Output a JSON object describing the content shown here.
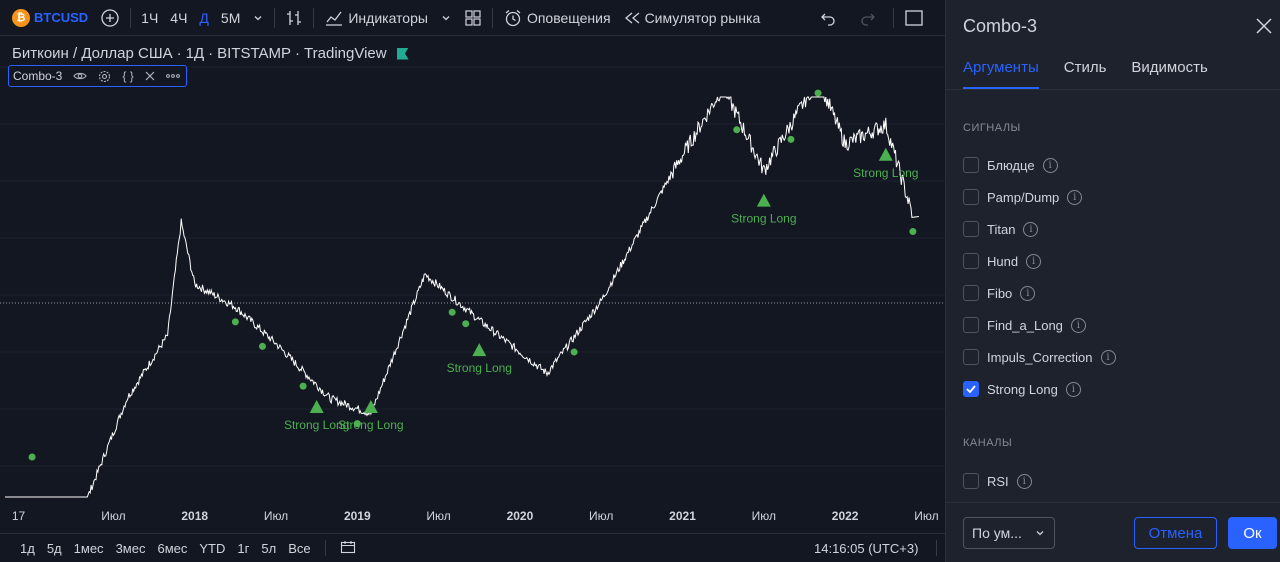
{
  "toolbar": {
    "symbol_logo": "₿",
    "symbol": "BTCUSD",
    "intervals": [
      "1Ч",
      "4Ч",
      "Д",
      "5М"
    ],
    "active_interval": "Д",
    "indicators_label": "Индикаторы",
    "alerts_label": "Оповещения",
    "replay_label": "Симулятор рынка",
    "icons": [
      "plus-circle-icon",
      "chevron-down-icon",
      "bar-style-icon",
      "indicators-icon",
      "layout-icon",
      "alarm-icon",
      "replay-icon",
      "undo-icon",
      "redo-icon",
      "fullscreen-icon"
    ]
  },
  "chart": {
    "title_parts": [
      "Биткоин / Доллар США",
      "1Д",
      "BITSTAMP",
      "TradingView"
    ],
    "study_name": "Combo-3",
    "study_icons": [
      "eye-icon",
      "gear-icon",
      "braces-icon",
      "close-icon",
      "more-icon"
    ],
    "signal_label": "Strong Long",
    "x_axis_labels": [
      "17",
      "Июл",
      "2018",
      "Июл",
      "2019",
      "Июл",
      "2020",
      "Июл",
      "2021",
      "Июл",
      "2022",
      "Июл"
    ]
  },
  "chart_data": {
    "type": "line",
    "title": "",
    "x": [
      "2017-11",
      "2017-12",
      "2018-01",
      "2018-04",
      "2018-07",
      "2018-11",
      "2019-02",
      "2019-06",
      "2019-10",
      "2020-03",
      "2020-07",
      "2020-12",
      "2021-04",
      "2021-07",
      "2021-11",
      "2022-01",
      "2022-04",
      "2022-06"
    ],
    "y": [
      7000,
      19000,
      11000,
      9000,
      6500,
      4000,
      3500,
      12000,
      8000,
      5000,
      9500,
      28000,
      63000,
      30000,
      68000,
      38000,
      45000,
      20000
    ],
    "markers": {
      "strong_long": [
        "2018-10",
        "2019-02",
        "2019-10",
        "2021-07",
        "2022-04"
      ],
      "dots": [
        "2017-01",
        "2018-04",
        "2018-06",
        "2018-09",
        "2019-01",
        "2019-08",
        "2019-09",
        "2020-05",
        "2021-05",
        "2021-09",
        "2021-11",
        "2022-06"
      ]
    },
    "series": [
      {
        "name": "",
        "color": "#ffffff"
      }
    ],
    "signal_color": "#4caf50"
  },
  "bottom": {
    "ranges": [
      "1д",
      "5д",
      "1мес",
      "3мес",
      "6мес",
      "YTD",
      "1г",
      "5л",
      "Все"
    ],
    "time": "14:16:05 (UTC+3)"
  },
  "panel": {
    "title": "Combo-3",
    "tabs": [
      "Аргументы",
      "Стиль",
      "Видимость"
    ],
    "active_tab": "Аргументы",
    "section_signals": "СИГНАЛЫ",
    "signals": [
      {
        "label": "Блюдце",
        "checked": false
      },
      {
        "label": "Pamp/Dump",
        "checked": false
      },
      {
        "label": "Titan",
        "checked": false
      },
      {
        "label": "Hund",
        "checked": false
      },
      {
        "label": "Fibo",
        "checked": false
      },
      {
        "label": "Find_a_Long",
        "checked": false
      },
      {
        "label": "Impuls_Correction",
        "checked": false
      },
      {
        "label": "Strong Long",
        "checked": true
      }
    ],
    "section_channels": "КАНАЛЫ",
    "channels": [
      {
        "label": "RSI",
        "checked": false
      }
    ],
    "defaults_label": "По ум...",
    "cancel_label": "Отмена",
    "ok_label": "Ок"
  },
  "colors": {
    "accent": "#2962ff",
    "background": "#131722",
    "panel_bg": "#1e222d",
    "signal": "#4caf50",
    "btc": "#f7931a"
  }
}
